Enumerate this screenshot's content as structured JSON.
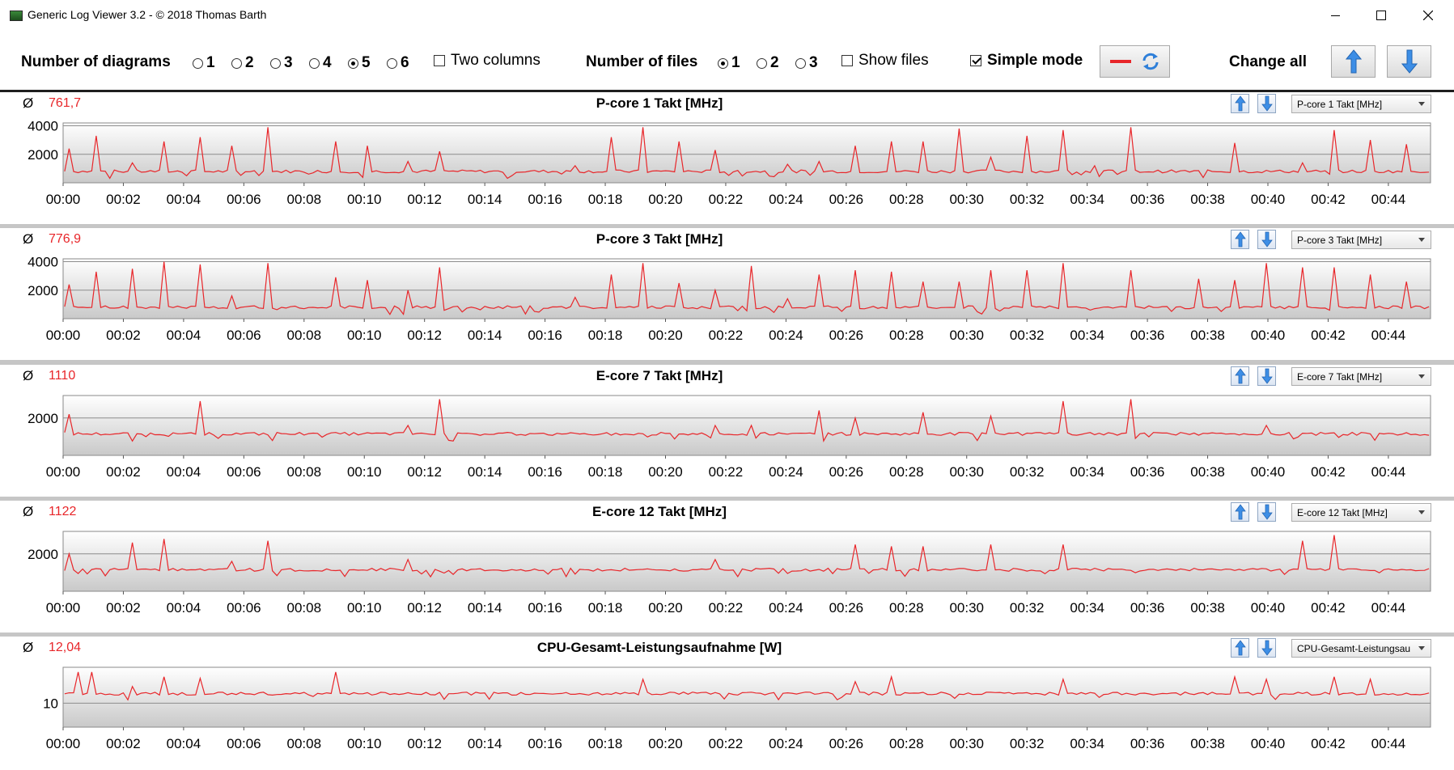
{
  "window": {
    "title": "Generic Log Viewer 3.2 - © 2018 Thomas Barth",
    "minimize_icon": "minimize-icon",
    "maximize_icon": "maximize-icon",
    "close_icon": "close-icon"
  },
  "toolbar": {
    "diagrams_label": "Number of diagrams",
    "diagram_options": [
      "1",
      "2",
      "3",
      "4",
      "5",
      "6"
    ],
    "diagram_selected": "5",
    "two_columns_label": "Two columns",
    "two_columns_checked": false,
    "files_label": "Number of files",
    "file_options": [
      "1",
      "2",
      "3"
    ],
    "file_selected": "1",
    "show_files_label": "Show files",
    "show_files_checked": false,
    "simple_mode_label": "Simple mode",
    "simple_mode_checked": true,
    "change_all_label": "Change all",
    "line_color": "#e8262a"
  },
  "x_ticks": [
    "00:00",
    "00:02",
    "00:04",
    "00:06",
    "00:08",
    "00:10",
    "00:12",
    "00:14",
    "00:16",
    "00:18",
    "00:20",
    "00:22",
    "00:24",
    "00:26",
    "00:28",
    "00:30",
    "00:32",
    "00:34",
    "00:36",
    "00:38",
    "00:40",
    "00:42",
    "00:44"
  ],
  "panels": [
    {
      "avg_symbol": "Ø",
      "avg": "761,7",
      "title": "P-core 1 Takt [MHz]",
      "selector": "P-core 1 Takt [MHz]"
    },
    {
      "avg_symbol": "Ø",
      "avg": "776,9",
      "title": "P-core 3 Takt [MHz]",
      "selector": "P-core 3 Takt [MHz]"
    },
    {
      "avg_symbol": "Ø",
      "avg": "1110",
      "title": "E-core 7 Takt [MHz]",
      "selector": "E-core 7 Takt [MHz]"
    },
    {
      "avg_symbol": "Ø",
      "avg": "1122",
      "title": "E-core 12 Takt [MHz]",
      "selector": "E-core 12 Takt [MHz]"
    },
    {
      "avg_symbol": "Ø",
      "avg": "12,04",
      "title": "CPU-Gesamt-Leistungsaufnahme [W]",
      "selector": "CPU-Gesamt-Leistungsau"
    }
  ],
  "chart_data": [
    {
      "type": "line",
      "title": "P-core 1 Takt [MHz]",
      "x_unit": "minutes",
      "xlim": [
        0,
        45.4
      ],
      "ylim": [
        0,
        4200
      ],
      "yticks": [
        "4000",
        "2000"
      ],
      "ytick_values": [
        4000,
        2000
      ],
      "baseline": 800,
      "color": "#e8262a",
      "spikes": [
        [
          0.1,
          2400
        ],
        [
          1.05,
          3300
        ],
        [
          2.2,
          1400
        ],
        [
          3.3,
          2900
        ],
        [
          4.45,
          3200
        ],
        [
          5.6,
          2600
        ],
        [
          6.8,
          3900
        ],
        [
          9.0,
          2900
        ],
        [
          10.1,
          2600
        ],
        [
          11.4,
          1500
        ],
        [
          12.5,
          2200
        ],
        [
          17.0,
          1200
        ],
        [
          18.1,
          3200
        ],
        [
          19.25,
          3900
        ],
        [
          20.4,
          2900
        ],
        [
          21.6,
          2300
        ],
        [
          24.0,
          1300
        ],
        [
          25.1,
          1500
        ],
        [
          26.2,
          2600
        ],
        [
          27.4,
          2900
        ],
        [
          28.5,
          2900
        ],
        [
          29.7,
          3800
        ],
        [
          30.8,
          1800
        ],
        [
          31.9,
          3300
        ],
        [
          33.1,
          3700
        ],
        [
          34.2,
          1200
        ],
        [
          35.4,
          3900
        ],
        [
          38.8,
          2800
        ],
        [
          41.1,
          1400
        ],
        [
          42.2,
          3700
        ],
        [
          43.3,
          3000
        ],
        [
          44.5,
          2700
        ]
      ]
    },
    {
      "type": "line",
      "title": "P-core 3 Takt [MHz]",
      "x_unit": "minutes",
      "xlim": [
        0,
        45.4
      ],
      "ylim": [
        0,
        4200
      ],
      "yticks": [
        "4000",
        "2000"
      ],
      "ytick_values": [
        4000,
        2000
      ],
      "baseline": 800,
      "color": "#e8262a",
      "spikes": [
        [
          0.1,
          2400
        ],
        [
          1.05,
          3300
        ],
        [
          2.2,
          3500
        ],
        [
          3.3,
          4000
        ],
        [
          4.45,
          3800
        ],
        [
          5.6,
          1600
        ],
        [
          6.8,
          3900
        ],
        [
          9.0,
          2900
        ],
        [
          10.1,
          2700
        ],
        [
          11.4,
          2000
        ],
        [
          12.5,
          3600
        ],
        [
          17.0,
          1500
        ],
        [
          18.1,
          3100
        ],
        [
          19.25,
          3900
        ],
        [
          20.4,
          2500
        ],
        [
          21.6,
          2000
        ],
        [
          22.8,
          3700
        ],
        [
          24.0,
          1400
        ],
        [
          25.1,
          3100
        ],
        [
          26.2,
          3400
        ],
        [
          27.4,
          3300
        ],
        [
          28.5,
          2600
        ],
        [
          29.7,
          2600
        ],
        [
          30.8,
          3400
        ],
        [
          31.9,
          3400
        ],
        [
          33.1,
          3900
        ],
        [
          35.4,
          3400
        ],
        [
          37.6,
          2800
        ],
        [
          38.8,
          2700
        ],
        [
          39.9,
          3900
        ],
        [
          41.1,
          3600
        ],
        [
          42.2,
          3600
        ],
        [
          43.3,
          3100
        ],
        [
          44.5,
          2600
        ]
      ]
    },
    {
      "type": "line",
      "title": "E-core 7 Takt [MHz]",
      "x_unit": "minutes",
      "xlim": [
        0,
        45.4
      ],
      "ylim": [
        0,
        3200
      ],
      "yticks": [
        "2000"
      ],
      "ytick_values": [
        2000
      ],
      "baseline": 1150,
      "color": "#e8262a",
      "spikes": [
        [
          0.1,
          2200
        ],
        [
          4.45,
          2900
        ],
        [
          11.4,
          1600
        ],
        [
          12.5,
          3000
        ],
        [
          21.6,
          1600
        ],
        [
          22.8,
          1600
        ],
        [
          25.1,
          2400
        ],
        [
          26.2,
          2000
        ],
        [
          28.5,
          2300
        ],
        [
          30.8,
          2100
        ],
        [
          33.1,
          2900
        ],
        [
          35.4,
          3000
        ],
        [
          39.9,
          1600
        ]
      ]
    },
    {
      "type": "line",
      "title": "E-core 12 Takt [MHz]",
      "x_unit": "minutes",
      "xlim": [
        0,
        45.4
      ],
      "ylim": [
        0,
        3200
      ],
      "yticks": [
        "2000"
      ],
      "ytick_values": [
        2000
      ],
      "baseline": 1150,
      "color": "#e8262a",
      "spikes": [
        [
          0.1,
          2000
        ],
        [
          2.2,
          2600
        ],
        [
          3.3,
          2800
        ],
        [
          5.6,
          1600
        ],
        [
          6.8,
          2700
        ],
        [
          11.4,
          1700
        ],
        [
          21.6,
          1700
        ],
        [
          26.2,
          2500
        ],
        [
          27.4,
          2400
        ],
        [
          28.5,
          2400
        ],
        [
          30.8,
          2500
        ],
        [
          33.1,
          2500
        ],
        [
          41.1,
          2700
        ],
        [
          42.2,
          3000
        ]
      ]
    },
    {
      "type": "line",
      "title": "CPU-Gesamt-Leistungsaufnahme [W]",
      "x_unit": "minutes",
      "xlim": [
        0,
        45.4
      ],
      "ylim": [
        5,
        17.5
      ],
      "yticks": [
        "10"
      ],
      "ytick_values": [
        10
      ],
      "baseline": 12,
      "color": "#e8262a",
      "spikes": [
        [
          0.4,
          16.5
        ],
        [
          0.9,
          16.5
        ],
        [
          2.2,
          13.5
        ],
        [
          3.3,
          15.5
        ],
        [
          4.45,
          15.2
        ],
        [
          9.0,
          16.5
        ],
        [
          19.25,
          15
        ],
        [
          26.2,
          14.5
        ],
        [
          27.4,
          15.5
        ],
        [
          33.1,
          15
        ],
        [
          38.8,
          15.5
        ],
        [
          39.9,
          15
        ],
        [
          42.2,
          15.5
        ],
        [
          43.3,
          15
        ]
      ]
    }
  ]
}
